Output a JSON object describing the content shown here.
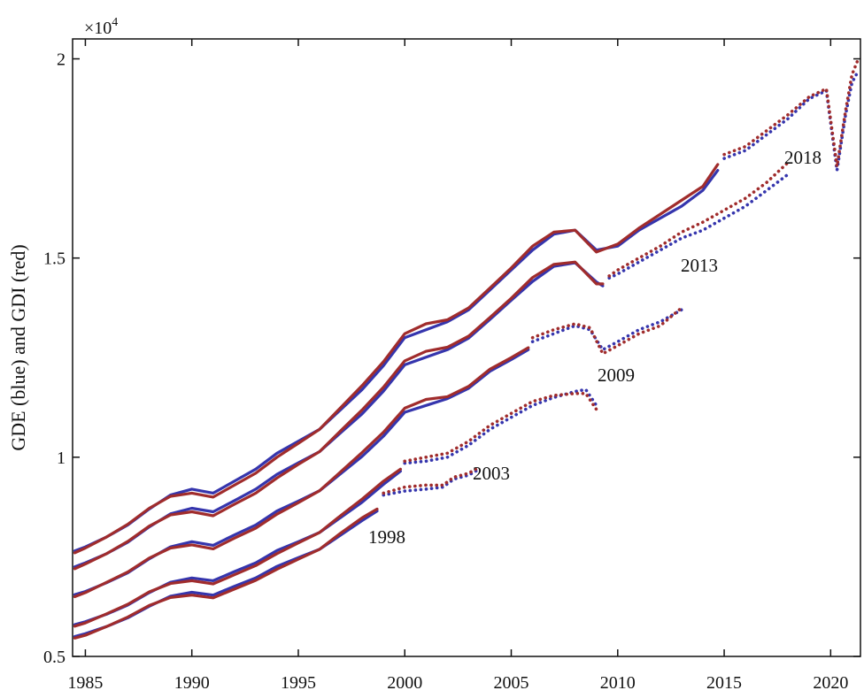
{
  "chart_data": {
    "type": "line",
    "y_label": "GDE (blue) and GDI (red)",
    "y_multiplier": {
      "base": "×10",
      "exponent": "4"
    },
    "xlim": [
      1984.4,
      2021.4
    ],
    "ylim": [
      0.5,
      2.05
    ],
    "xticks": [
      1985,
      1990,
      1995,
      2000,
      2005,
      2010,
      2015,
      2020
    ],
    "yticks": [
      0.5,
      1,
      1.5,
      2
    ],
    "annotations": [
      {
        "text": "1998"
      },
      {
        "text": "2003"
      },
      {
        "text": "2009"
      },
      {
        "text": "2013"
      },
      {
        "text": "2018"
      }
    ],
    "series": [
      {
        "color": "#3535ad",
        "style": "solid",
        "x": [
          1984.5,
          1985,
          1986,
          1987,
          1988,
          1989,
          1990,
          1991,
          1992,
          1993,
          1994,
          1995,
          1996,
          1997,
          1998,
          1998.7
        ],
        "values": [
          0.55,
          0.557,
          0.575,
          0.597,
          0.626,
          0.651,
          0.661,
          0.654,
          0.676,
          0.697,
          0.726,
          0.748,
          0.769,
          0.805,
          0.841,
          0.865
        ]
      },
      {
        "color": "#a02c2c",
        "style": "solid",
        "x": [
          1984.5,
          1985,
          1986,
          1987,
          1988,
          1989,
          1990,
          1991,
          1992,
          1993,
          1994,
          1995,
          1996,
          1997,
          1998,
          1998.7
        ],
        "values": [
          0.546,
          0.553,
          0.575,
          0.599,
          0.628,
          0.648,
          0.654,
          0.647,
          0.669,
          0.691,
          0.719,
          0.744,
          0.769,
          0.81,
          0.848,
          0.87
        ]
      },
      {
        "color": "#3535ad",
        "style": "dotted",
        "x": [
          1999,
          2000,
          2001,
          2001.8,
          2002.3,
          2003,
          2003.5
        ],
        "values": [
          0.905,
          0.915,
          0.92,
          0.925,
          0.945,
          0.955,
          0.97
        ]
      },
      {
        "color": "#a02c2c",
        "style": "dotted",
        "x": [
          1999,
          2000,
          2001,
          2001.8,
          2002.3,
          2003,
          2003.5
        ],
        "values": [
          0.91,
          0.925,
          0.93,
          0.93,
          0.95,
          0.96,
          0.975
        ]
      },
      {
        "color": "#3535ad",
        "style": "solid",
        "x": [
          1984.5,
          1985,
          1986,
          1987,
          1988,
          1989,
          1990,
          1991,
          1992,
          1993,
          1994,
          1995,
          1996,
          1997,
          1998,
          1999,
          1999.8
        ],
        "values": [
          0.58,
          0.587,
          0.606,
          0.629,
          0.66,
          0.686,
          0.697,
          0.69,
          0.713,
          0.735,
          0.766,
          0.788,
          0.811,
          0.849,
          0.887,
          0.932,
          0.965
        ]
      },
      {
        "color": "#a02c2c",
        "style": "solid",
        "x": [
          1984.5,
          1985,
          1986,
          1987,
          1988,
          1989,
          1990,
          1991,
          1992,
          1993,
          1994,
          1995,
          1996,
          1997,
          1998,
          1999,
          1999.8
        ],
        "values": [
          0.576,
          0.584,
          0.607,
          0.631,
          0.662,
          0.683,
          0.69,
          0.682,
          0.705,
          0.728,
          0.758,
          0.785,
          0.811,
          0.854,
          0.895,
          0.94,
          0.97
        ]
      },
      {
        "color": "#3535ad",
        "style": "dotted",
        "x": [
          2000,
          2001,
          2002,
          2003,
          2004,
          2005,
          2006,
          2007,
          2008,
          2008.5,
          2009
        ],
        "values": [
          0.985,
          0.99,
          1.0,
          1.03,
          1.07,
          1.1,
          1.13,
          1.15,
          1.165,
          1.17,
          1.13
        ]
      },
      {
        "color": "#a02c2c",
        "style": "dotted",
        "x": [
          2000,
          2001,
          2002,
          2003,
          2004,
          2005,
          2006,
          2007,
          2008,
          2008.5,
          2009
        ],
        "values": [
          0.99,
          1.0,
          1.01,
          1.04,
          1.08,
          1.11,
          1.14,
          1.155,
          1.16,
          1.16,
          1.12
        ]
      },
      {
        "color": "#3535ad",
        "style": "solid",
        "x": [
          1984.5,
          1985,
          1986,
          1987,
          1988,
          1989,
          1990,
          1991,
          1992,
          1993,
          1994,
          1995,
          1996,
          1997,
          1998,
          1999,
          2000,
          2001,
          2002,
          2003,
          2004,
          2005,
          2005.8
        ],
        "values": [
          0.655,
          0.663,
          0.685,
          0.71,
          0.745,
          0.775,
          0.788,
          0.779,
          0.805,
          0.83,
          0.865,
          0.89,
          0.916,
          0.959,
          1.002,
          1.053,
          1.113,
          1.13,
          1.147,
          1.173,
          1.216,
          1.245,
          1.27
        ]
      },
      {
        "color": "#a02c2c",
        "style": "solid",
        "x": [
          1984.5,
          1985,
          1986,
          1987,
          1988,
          1989,
          1990,
          1991,
          1992,
          1993,
          1994,
          1995,
          1996,
          1997,
          1998,
          1999,
          2000,
          2001,
          2002,
          2003,
          2004,
          2005,
          2005.8
        ],
        "values": [
          0.65,
          0.66,
          0.686,
          0.712,
          0.747,
          0.772,
          0.78,
          0.77,
          0.797,
          0.822,
          0.857,
          0.886,
          0.916,
          0.964,
          1.012,
          1.063,
          1.123,
          1.145,
          1.152,
          1.178,
          1.221,
          1.25,
          1.275
        ]
      },
      {
        "color": "#3535ad",
        "style": "dotted",
        "x": [
          2006,
          2007,
          2008,
          2008.7,
          2009.3,
          2010,
          2011,
          2012,
          2013
        ],
        "values": [
          1.29,
          1.31,
          1.33,
          1.32,
          1.27,
          1.29,
          1.32,
          1.34,
          1.37
        ]
      },
      {
        "color": "#a02c2c",
        "style": "dotted",
        "x": [
          2006,
          2007,
          2008,
          2008.7,
          2009.3,
          2010,
          2011,
          2012,
          2013
        ],
        "values": [
          1.3,
          1.32,
          1.335,
          1.325,
          1.26,
          1.28,
          1.31,
          1.33,
          1.375
        ]
      },
      {
        "color": "#3535ad",
        "style": "solid",
        "x": [
          1984.5,
          1985,
          1986,
          1987,
          1988,
          1989,
          1990,
          1991,
          1992,
          1993,
          1994,
          1995,
          1996,
          1997,
          1998,
          1999,
          2000,
          2001,
          2002,
          2003,
          2004,
          2005,
          2006,
          2007,
          2008,
          2009,
          2009.3
        ],
        "values": [
          0.725,
          0.735,
          0.758,
          0.787,
          0.825,
          0.858,
          0.872,
          0.863,
          0.891,
          0.92,
          0.957,
          0.986,
          1.014,
          1.062,
          1.109,
          1.166,
          1.232,
          1.251,
          1.27,
          1.299,
          1.346,
          1.394,
          1.441,
          1.479,
          1.488,
          1.44,
          1.43
        ]
      },
      {
        "color": "#a02c2c",
        "style": "solid",
        "x": [
          1984.5,
          1985,
          1986,
          1987,
          1988,
          1989,
          1990,
          1991,
          1992,
          1993,
          1994,
          1995,
          1996,
          1997,
          1998,
          1999,
          2000,
          2001,
          2002,
          2003,
          2004,
          2005,
          2006,
          2007,
          2008,
          2009,
          2009.3
        ],
        "values": [
          0.72,
          0.732,
          0.758,
          0.789,
          0.827,
          0.855,
          0.863,
          0.853,
          0.882,
          0.91,
          0.948,
          0.982,
          1.014,
          1.067,
          1.119,
          1.176,
          1.242,
          1.266,
          1.276,
          1.304,
          1.351,
          1.399,
          1.451,
          1.484,
          1.49,
          1.435,
          1.435
        ]
      },
      {
        "color": "#3535ad",
        "style": "dotted",
        "x": [
          2009.6,
          2010,
          2011,
          2012,
          2013,
          2014,
          2015,
          2016,
          2017,
          2018
        ],
        "values": [
          1.45,
          1.46,
          1.49,
          1.52,
          1.55,
          1.57,
          1.6,
          1.63,
          1.67,
          1.71
        ]
      },
      {
        "color": "#a02c2c",
        "style": "dotted",
        "x": [
          2009.6,
          2010,
          2011,
          2012,
          2013,
          2014,
          2015,
          2016,
          2017,
          2018
        ],
        "values": [
          1.455,
          1.47,
          1.5,
          1.53,
          1.565,
          1.59,
          1.62,
          1.65,
          1.69,
          1.74
        ]
      },
      {
        "color": "#3535ad",
        "style": "solid",
        "x": [
          1984.5,
          1985,
          1986,
          1987,
          1988,
          1989,
          1990,
          1991,
          1992,
          1993,
          1994,
          1995,
          1996,
          1997,
          1998,
          1999,
          2000,
          2001,
          2002,
          2003,
          2004,
          2005,
          2006,
          2007,
          2008,
          2009,
          2010,
          2011,
          2012,
          2013,
          2014,
          2014.7
        ],
        "values": [
          0.765,
          0.775,
          0.8,
          0.83,
          0.87,
          0.905,
          0.92,
          0.91,
          0.94,
          0.97,
          1.01,
          1.04,
          1.07,
          1.12,
          1.17,
          1.23,
          1.3,
          1.32,
          1.34,
          1.37,
          1.42,
          1.47,
          1.52,
          1.56,
          1.57,
          1.52,
          1.53,
          1.57,
          1.6,
          1.63,
          1.67,
          1.72
        ]
      },
      {
        "color": "#a02c2c",
        "style": "solid",
        "x": [
          1984.5,
          1985,
          1986,
          1987,
          1988,
          1989,
          1990,
          1991,
          1992,
          1993,
          1994,
          1995,
          1996,
          1997,
          1998,
          1999,
          2000,
          2001,
          2002,
          2003,
          2004,
          2005,
          2006,
          2007,
          2008,
          2009,
          2010,
          2011,
          2012,
          2013,
          2014,
          2014.7
        ],
        "values": [
          0.76,
          0.772,
          0.8,
          0.832,
          0.872,
          0.902,
          0.91,
          0.9,
          0.93,
          0.96,
          1.0,
          1.035,
          1.07,
          1.125,
          1.18,
          1.24,
          1.31,
          1.335,
          1.345,
          1.375,
          1.425,
          1.475,
          1.53,
          1.565,
          1.57,
          1.515,
          1.535,
          1.575,
          1.61,
          1.645,
          1.68,
          1.735
        ]
      },
      {
        "color": "#3535ad",
        "style": "dotted",
        "x": [
          2015,
          2016,
          2017,
          2018,
          2019,
          2019.8,
          2020.3,
          2020.7,
          2021,
          2021.3
        ],
        "values": [
          1.75,
          1.77,
          1.81,
          1.85,
          1.9,
          1.92,
          1.72,
          1.86,
          1.94,
          1.97
        ]
      },
      {
        "color": "#a02c2c",
        "style": "dotted",
        "x": [
          2015,
          2016,
          2017,
          2018,
          2019,
          2019.8,
          2020.3,
          2020.7,
          2021,
          2021.3
        ],
        "values": [
          1.76,
          1.78,
          1.82,
          1.86,
          1.905,
          1.925,
          1.73,
          1.87,
          1.96,
          2.0
        ]
      }
    ]
  }
}
